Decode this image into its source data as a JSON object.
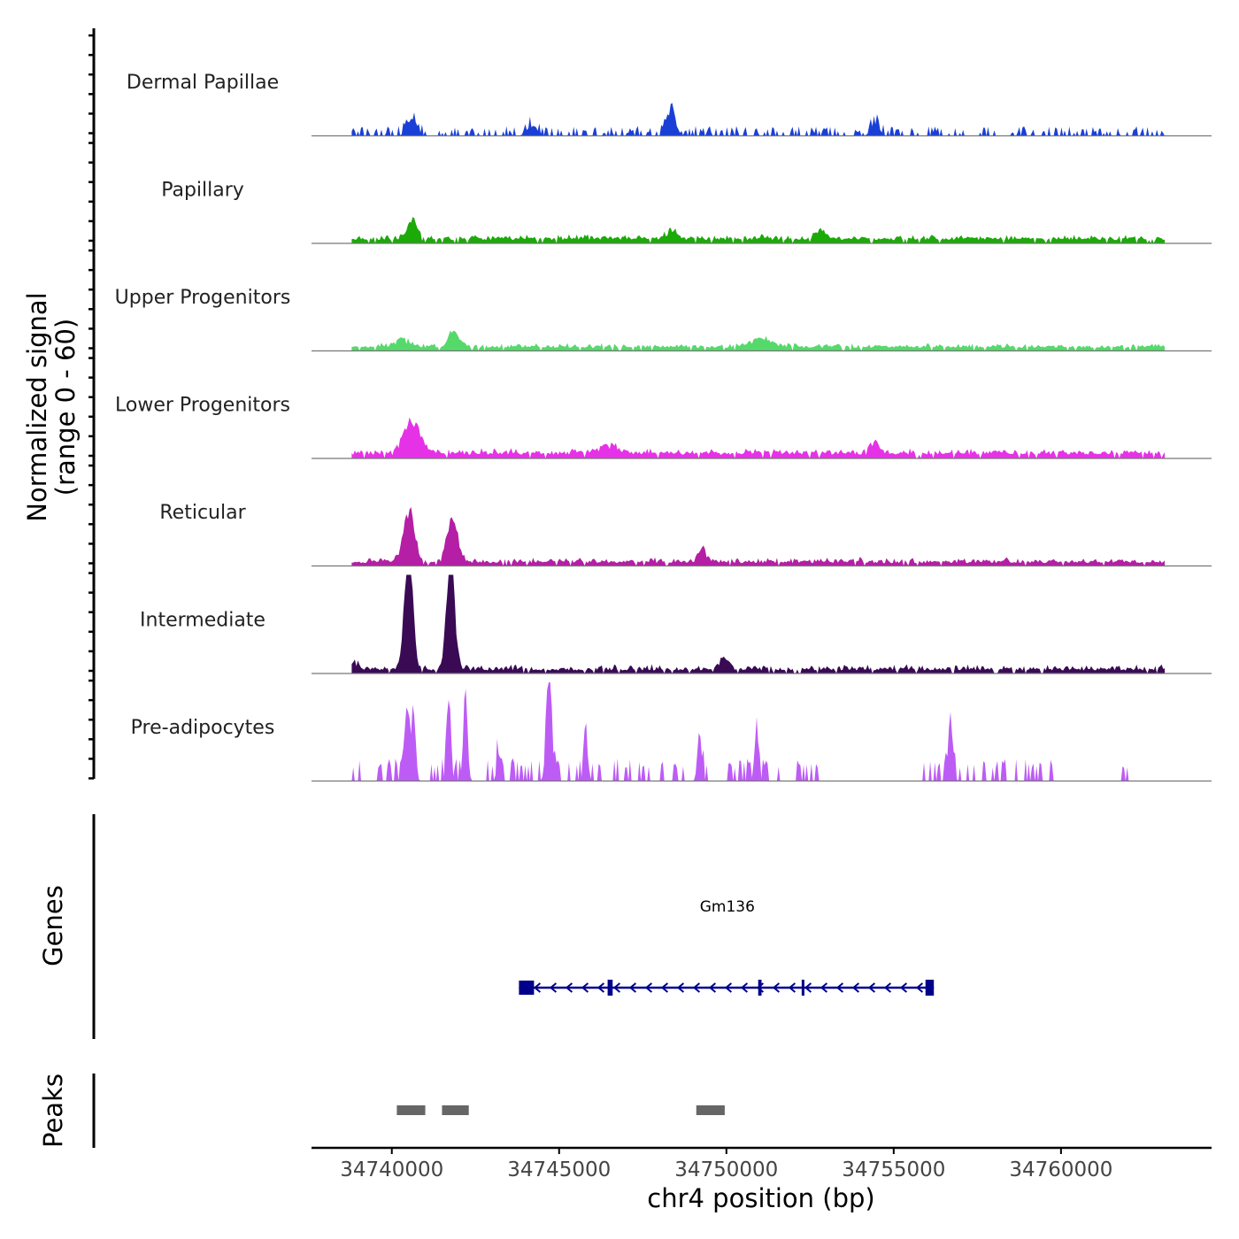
{
  "chart_data": {
    "type": "area",
    "title": "",
    "ylabel_line1": "Normalized signal",
    "ylabel_line2": "(range 0 - 60)",
    "xlabel": "chr4 position (bp)",
    "chromosome": "chr4",
    "xlim": [
      34737600,
      34764500
    ],
    "ylim": [
      0,
      60
    ],
    "x_ticks": [
      34740000,
      34745000,
      34750000,
      34755000,
      34760000
    ],
    "x_tick_labels": [
      "34740000",
      "34745000",
      "34750000",
      "34755000",
      "34760000"
    ],
    "coverage_tracks": [
      {
        "name": "Dermal Papillae",
        "color": "#1A3FD6",
        "seed": 11,
        "base": 1.5,
        "noise": 2.8,
        "sparse": true,
        "peaks": [
          [
            34740600,
            12,
            140
          ],
          [
            34748350,
            18,
            130
          ],
          [
            34744200,
            7,
            150
          ],
          [
            34754450,
            9,
            120
          ]
        ]
      },
      {
        "name": "Papillary",
        "color": "#1BAA08",
        "seed": 23,
        "base": 2.0,
        "noise": 2.6,
        "sparse": false,
        "peaks": [
          [
            34740600,
            13,
            150
          ],
          [
            34748350,
            8,
            140
          ],
          [
            34752800,
            5,
            160
          ]
        ]
      },
      {
        "name": "Upper Progenitors",
        "color": "#55D96B",
        "seed": 37,
        "base": 1.8,
        "noise": 2.2,
        "sparse": false,
        "peaks": [
          [
            34741850,
            11,
            140
          ],
          [
            34740300,
            6,
            200
          ],
          [
            34751000,
            6,
            300
          ]
        ]
      },
      {
        "name": "Lower Progenitors",
        "color": "#E632E6",
        "seed": 41,
        "base": 2.2,
        "noise": 2.8,
        "sparse": false,
        "peaks": [
          [
            34740600,
            22,
            260
          ],
          [
            34754400,
            9,
            140
          ],
          [
            34746400,
            6,
            300
          ]
        ]
      },
      {
        "name": "Reticular",
        "color": "#B41FA5",
        "seed": 53,
        "base": 1.7,
        "noise": 2.6,
        "sparse": false,
        "peaks": [
          [
            34740520,
            36,
            160
          ],
          [
            34741800,
            30,
            160
          ],
          [
            34749300,
            9,
            120
          ]
        ]
      },
      {
        "name": "Intermediate",
        "color": "#3A0A55",
        "seed": 67,
        "base": 1.8,
        "noise": 2.7,
        "sparse": false,
        "peaks": [
          [
            34740500,
            86,
            120
          ],
          [
            34741760,
            83,
            120
          ],
          [
            34749900,
            8,
            140
          ],
          [
            34738900,
            6,
            120
          ]
        ]
      },
      {
        "name": "Pre-adipocytes",
        "color": "#BD5CF5",
        "seed": 79,
        "base": 0,
        "noise": 0,
        "sparse": true,
        "peaks": [
          [
            34740450,
            58,
            60
          ],
          [
            34740650,
            52,
            60
          ],
          [
            34741700,
            46,
            60
          ],
          [
            34742200,
            68,
            60
          ],
          [
            34744700,
            70,
            80
          ],
          [
            34749200,
            37,
            60
          ],
          [
            34750900,
            35,
            60
          ],
          [
            34756700,
            45,
            70
          ],
          [
            34745800,
            30,
            60
          ],
          [
            34743200,
            18,
            60
          ]
        ]
      }
    ],
    "track_data_range": [
      34738800,
      34763100
    ],
    "genes": [
      {
        "name": "Gm136",
        "start": 34743800,
        "end": 34756200,
        "strand": "-",
        "exons": [
          [
            34743800,
            34744250
          ],
          [
            34746450,
            34746600
          ],
          [
            34750950,
            34751050
          ],
          [
            34752250,
            34752330
          ],
          [
            34755950,
            34756200
          ]
        ]
      }
    ],
    "genes_panel_label": "Genes",
    "peaks_panel_label": "Peaks",
    "peaks": [
      [
        34740150,
        34741000
      ],
      [
        34741500,
        34742300
      ],
      [
        34749100,
        34749950
      ]
    ],
    "peak_color": "#666666"
  }
}
